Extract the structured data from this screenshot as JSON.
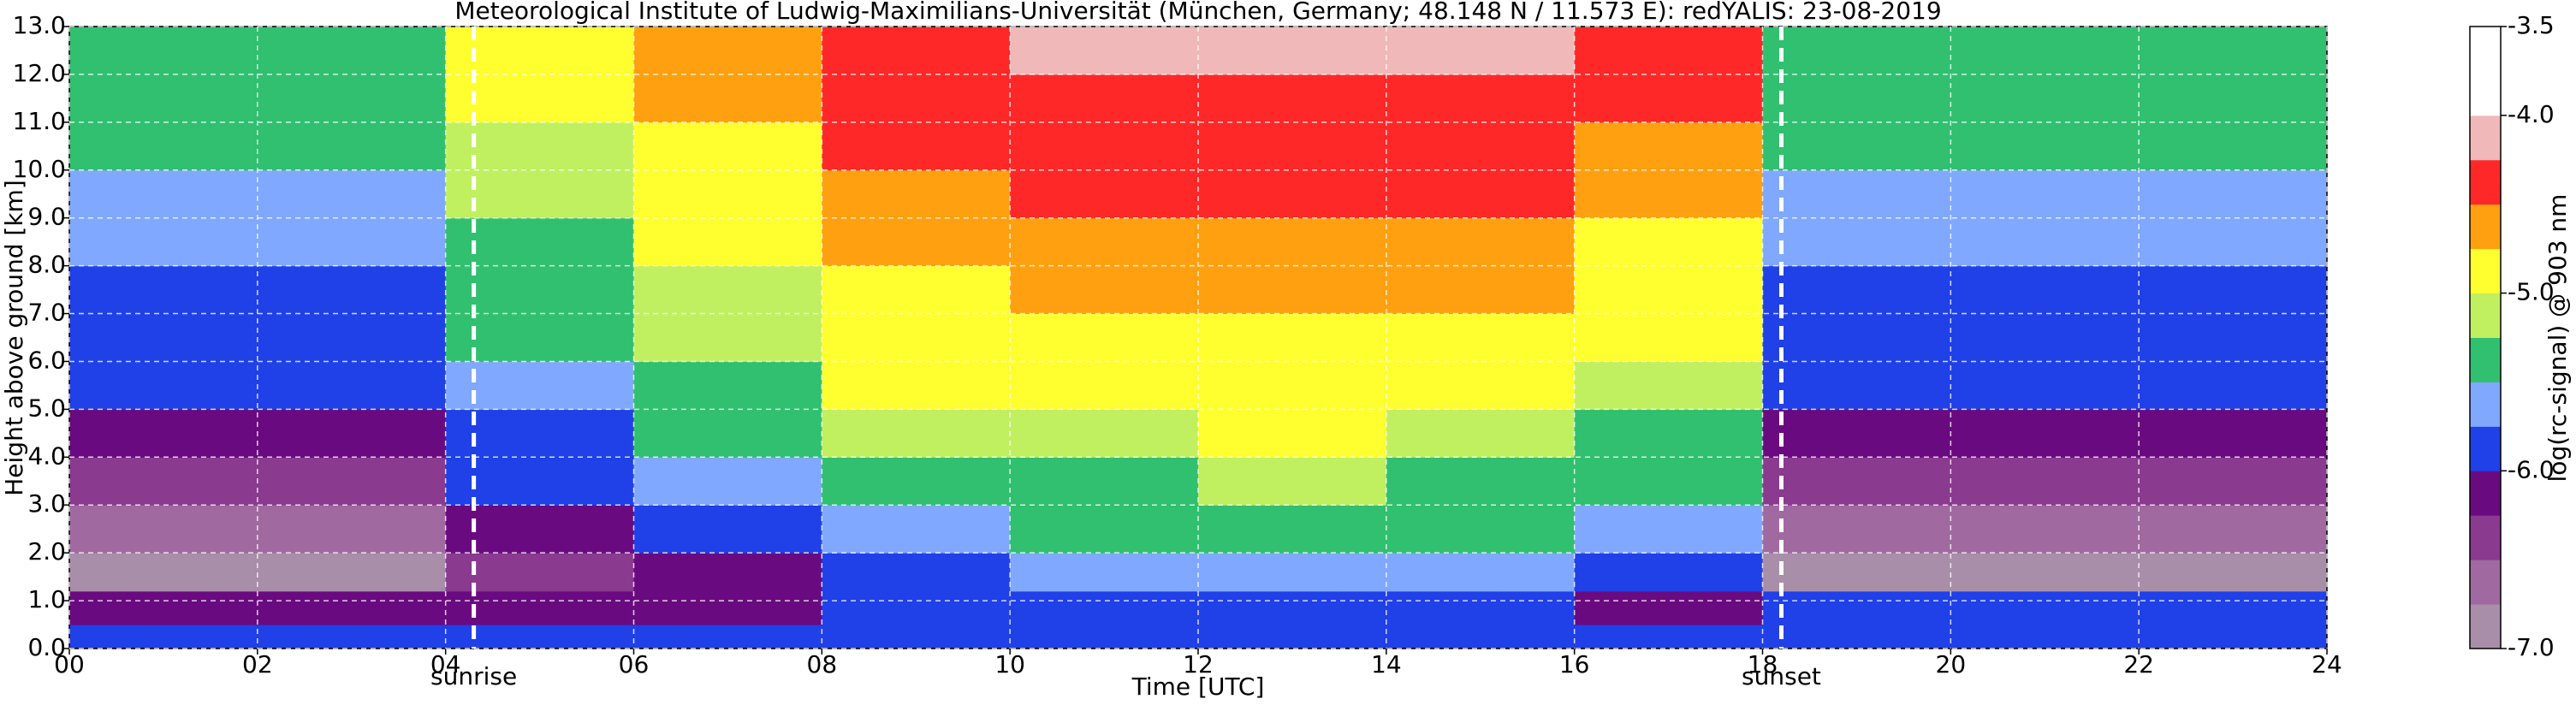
{
  "chart_data": {
    "type": "heatmap",
    "title": "Meteorological Institute of Ludwig-Maximilians-Universität (München, Germany; 48.148 N / 11.573 E):     redYALIS: 23-08-2019",
    "x_label": "Time [UTC]",
    "y_label": "Height above ground [km]",
    "colorbar_label": "log(rc-signal) @ 903 nm",
    "xlim": [
      0,
      24
    ],
    "ylim": [
      0,
      13
    ],
    "zlim": [
      -7,
      -3.5
    ],
    "xticks": [
      {
        "value": 0,
        "label": "00"
      },
      {
        "value": 2,
        "label": "02"
      },
      {
        "value": 4,
        "label": "04"
      },
      {
        "value": 6,
        "label": "06"
      },
      {
        "value": 8,
        "label": "08"
      },
      10,
      12,
      14,
      16,
      18,
      20,
      22,
      24
    ],
    "yticks": [
      {
        "value": 0,
        "label": "0.0"
      },
      {
        "value": 1,
        "label": "1.0"
      },
      {
        "value": 2,
        "label": "2.0"
      },
      {
        "value": 3,
        "label": "3.0"
      },
      {
        "value": 4,
        "label": "4.0"
      },
      {
        "value": 5,
        "label": "5.0"
      },
      {
        "value": 6,
        "label": "6.0"
      },
      {
        "value": 7,
        "label": "7.0"
      },
      {
        "value": 8,
        "label": "8.0"
      },
      {
        "value": 9,
        "label": "9.0"
      },
      {
        "value": 10,
        "label": "10.0"
      },
      {
        "value": 11,
        "label": "11.0"
      },
      {
        "value": 12,
        "label": "12.0"
      },
      {
        "value": 13,
        "label": "13.0"
      }
    ],
    "zticks": [
      -3.5,
      {
        "value": -4,
        "label": "-4.0"
      },
      {
        "value": -5,
        "label": "-5.0"
      },
      {
        "value": -6,
        "label": "-6.0"
      },
      {
        "value": -7,
        "label": "-7.0"
      }
    ],
    "grid": true,
    "colormap": [
      "#a88ea8",
      "#a06aa0",
      "#8a3a8f",
      "#6a0a80",
      "#2040e8",
      "#80a8ff",
      "#30c070",
      "#c0f060",
      "#ffff30",
      "#ffa010",
      "#ff2828",
      "#f0b8b8",
      "#ffffff",
      "#ffffff"
    ],
    "annotations": [
      {
        "x": 4.3,
        "label": "sunrise"
      },
      {
        "x": 18.2,
        "label": "sunset"
      }
    ],
    "x_bins": [
      0,
      2,
      4,
      6,
      8,
      10,
      12,
      14,
      16,
      18,
      20,
      22,
      24
    ],
    "y_bins": [
      0,
      0.5,
      1.2,
      2,
      3,
      4,
      5,
      6,
      7,
      8,
      9,
      10,
      11,
      12,
      13
    ],
    "values": [
      [
        -5.9,
        -5.9,
        -5.9,
        -5.9,
        -5.9,
        -5.9,
        -5.9,
        -5.9,
        -5.9,
        -5.9,
        -5.9,
        -5.9
      ],
      [
        -6.2,
        -6.2,
        -6.1,
        -6.1,
        -6.0,
        -6.0,
        -6.0,
        -6.0,
        -6.1,
        -5.9,
        -6.0,
        -6.0
      ],
      [
        -6.8,
        -6.8,
        -6.4,
        -6.1,
        -5.8,
        -5.7,
        -5.6,
        -5.7,
        -5.9,
        -6.8,
        -6.8,
        -6.8
      ],
      [
        -6.6,
        -6.6,
        -6.2,
        -5.9,
        -5.6,
        -5.5,
        -5.4,
        -5.5,
        -5.7,
        -6.6,
        -6.6,
        -6.6
      ],
      [
        -6.4,
        -6.4,
        -6.0,
        -5.7,
        -5.4,
        -5.3,
        -5.2,
        -5.3,
        -5.5,
        -6.4,
        -6.4,
        -6.4
      ],
      [
        -6.2,
        -6.2,
        -5.8,
        -5.5,
        -5.2,
        -5.1,
        -5.0,
        -5.1,
        -5.3,
        -6.2,
        -6.2,
        -6.2
      ],
      [
        -6.0,
        -6.0,
        -5.6,
        -5.3,
        -5.0,
        -4.9,
        -4.9,
        -4.9,
        -5.1,
        -6.0,
        -6.0,
        -6.0
      ],
      [
        -5.9,
        -5.9,
        -5.5,
        -5.2,
        -4.9,
        -4.8,
        -4.8,
        -4.8,
        -5.0,
        -5.9,
        -5.9,
        -5.9
      ],
      [
        -5.8,
        -5.8,
        -5.4,
        -5.1,
        -4.8,
        -4.7,
        -4.7,
        -4.7,
        -4.9,
        -5.8,
        -5.8,
        -5.8
      ],
      [
        -5.7,
        -5.7,
        -5.3,
        -5.0,
        -4.7,
        -4.6,
        -4.6,
        -4.6,
        -4.8,
        -5.7,
        -5.7,
        -5.7
      ],
      [
        -5.6,
        -5.6,
        -5.2,
        -4.9,
        -4.6,
        -4.5,
        -4.5,
        -4.5,
        -4.7,
        -5.6,
        -5.6,
        -5.6
      ],
      [
        -5.5,
        -5.5,
        -5.1,
        -4.8,
        -4.5,
        -4.4,
        -4.4,
        -4.4,
        -4.6,
        -5.5,
        -5.5,
        -5.5
      ],
      [
        -5.4,
        -5.4,
        -5.0,
        -4.7,
        -4.4,
        -4.3,
        -4.3,
        -4.3,
        -4.5,
        -5.4,
        -5.4,
        -5.4
      ],
      [
        -5.3,
        -5.3,
        -4.9,
        -4.6,
        -4.3,
        -4.2,
        -4.1,
        -4.2,
        -4.4,
        -5.3,
        -5.3,
        -5.3
      ]
    ]
  }
}
